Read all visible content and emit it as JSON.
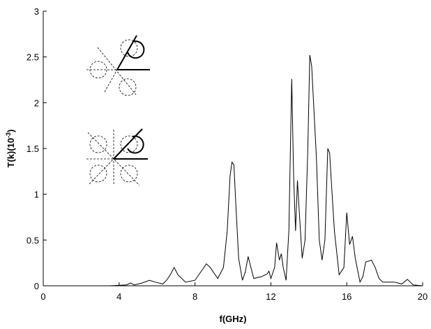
{
  "chart_data": {
    "type": "line",
    "x_label": "f(GHz)",
    "y_label": {
      "base": "T(k)(10",
      "exponent": "-3",
      "suffix": ")"
    },
    "xlim": [
      0,
      20
    ],
    "ylim": [
      0,
      3
    ],
    "xticks": [
      0,
      4,
      8,
      12,
      16,
      20
    ],
    "yticks": [
      0,
      0.5,
      1,
      1.5,
      2,
      2.5,
      3
    ],
    "series": [
      {
        "color": "#000000",
        "x": [
          0,
          3.5,
          4.4,
          4.6,
          4.8,
          5.2,
          5.6,
          5.9,
          6.3,
          6.5,
          6.7,
          6.9,
          7.1,
          7.5,
          8.0,
          8.4,
          8.6,
          8.8,
          9.2,
          9.5,
          9.7,
          9.85,
          9.95,
          10.05,
          10.15,
          10.3,
          10.5,
          10.65,
          10.8,
          10.95,
          11.1,
          11.5,
          11.8,
          11.9,
          12.0,
          12.2,
          12.3,
          12.45,
          12.55,
          12.65,
          12.8,
          12.95,
          13.1,
          13.2,
          13.3,
          13.4,
          13.5,
          13.65,
          13.8,
          13.95,
          14.05,
          14.15,
          14.25,
          14.4,
          14.55,
          14.7,
          14.85,
          15.0,
          15.1,
          15.2,
          15.35,
          15.6,
          15.85,
          16.0,
          16.15,
          16.3,
          16.45,
          16.7,
          16.85,
          17.0,
          17.3,
          17.5,
          17.7,
          17.9,
          18.5,
          18.9,
          19.2,
          19.5,
          20
        ],
        "values": [
          0,
          0,
          0.01,
          0.03,
          0.01,
          0.03,
          0.06,
          0.04,
          0.02,
          0.06,
          0.12,
          0.2,
          0.12,
          0.04,
          0.06,
          0.18,
          0.24,
          0.2,
          0.08,
          0.2,
          0.6,
          1.2,
          1.35,
          1.32,
          0.9,
          0.3,
          0.06,
          0.15,
          0.32,
          0.2,
          0.08,
          0.1,
          0.13,
          0.16,
          0.08,
          0.2,
          0.47,
          0.28,
          0.35,
          0.2,
          0.06,
          0.6,
          2.26,
          1.2,
          0.6,
          1.15,
          0.8,
          0.3,
          0.5,
          1.5,
          2.52,
          2.4,
          2.0,
          1.4,
          0.5,
          0.28,
          0.5,
          1.5,
          1.45,
          1.1,
          0.6,
          0.12,
          0.2,
          0.8,
          0.45,
          0.54,
          0.3,
          0.04,
          0.1,
          0.26,
          0.28,
          0.2,
          0.08,
          0.04,
          0.04,
          0.02,
          0.07,
          0.01,
          0
        ]
      }
    ]
  }
}
